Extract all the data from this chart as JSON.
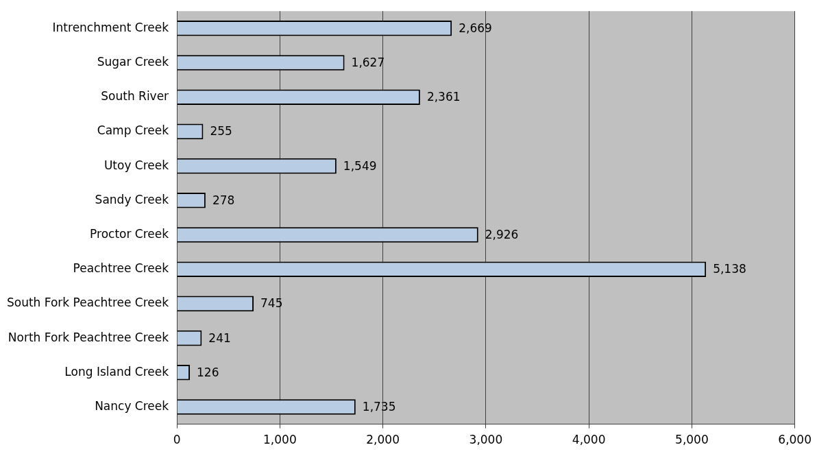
{
  "chart_data": {
    "type": "bar",
    "orientation": "horizontal",
    "categories": [
      "Intrenchment Creek",
      "Sugar Creek",
      "South River",
      "Camp Creek",
      "Utoy Creek",
      "Sandy Creek",
      "Proctor Creek",
      "Peachtree Creek",
      "South Fork Peachtree Creek",
      "North Fork Peachtree Creek",
      "Long Island Creek",
      "Nancy Creek"
    ],
    "values": [
      2669,
      1627,
      2361,
      255,
      1549,
      278,
      2926,
      5138,
      745,
      241,
      126,
      1735
    ],
    "value_labels": [
      "2,669",
      "1,627",
      "2,361",
      "255",
      "1,549",
      "278",
      "2,926",
      "5,138",
      "745",
      "241",
      "126",
      "1,735"
    ],
    "color": "#b8cce4",
    "xlim": [
      0,
      6000
    ],
    "xticks": [
      {
        "value": 0,
        "label": "0"
      },
      {
        "value": 1000,
        "label": "1,000"
      },
      {
        "value": 2000,
        "label": "2,000"
      },
      {
        "value": 3000,
        "label": "3,000"
      },
      {
        "value": 4000,
        "label": "4,000"
      },
      {
        "value": 5000,
        "label": "5,000"
      },
      {
        "value": 6000,
        "label": "6,000"
      }
    ],
    "grid": "x",
    "legend": false
  }
}
